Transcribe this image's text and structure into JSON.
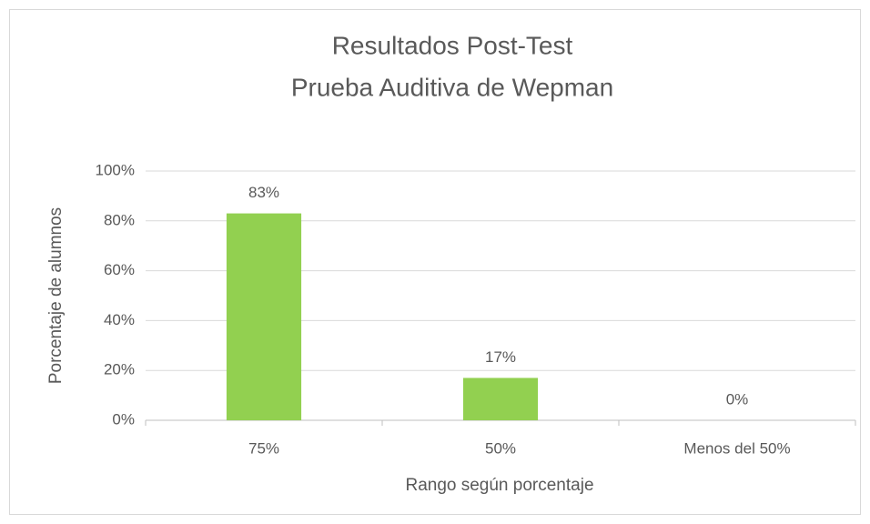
{
  "chart_data": {
    "type": "bar",
    "title": [
      "Resultados Post-Test",
      "Prueba Auditiva de Wepman"
    ],
    "x_label": "Rango según porcentaje",
    "y_label": "Porcentaje de alumnos",
    "categories": [
      "75%",
      "50%",
      "Menos del 50%"
    ],
    "values": [
      83,
      17,
      0
    ],
    "value_labels": [
      "83%",
      "17%",
      "0%"
    ],
    "color": "#92d050",
    "ylim": [
      0,
      100
    ],
    "yticks": [
      {
        "value": 0,
        "label": "0%"
      },
      {
        "value": 20,
        "label": "20%"
      },
      {
        "value": 40,
        "label": "40%"
      },
      {
        "value": 60,
        "label": "60%"
      },
      {
        "value": 80,
        "label": "80%"
      },
      {
        "value": 100,
        "label": "100%"
      }
    ],
    "grid": true
  }
}
